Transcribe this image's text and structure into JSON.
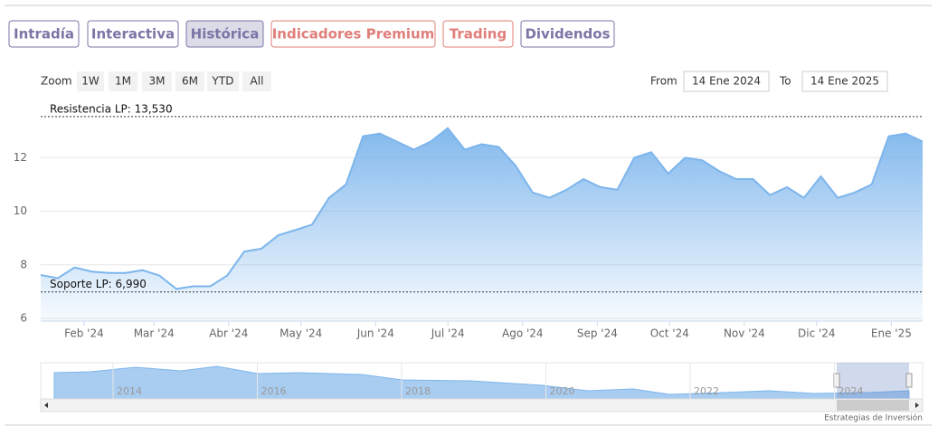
{
  "tabs": [
    "Intradía",
    "Interactiva",
    "Histórica",
    "Indicadores Premium",
    "Trading",
    "Dividendos"
  ],
  "zoom": {
    "label": "Zoom",
    "buttons": [
      "1W",
      "1M",
      "3M",
      "6M",
      "YTD",
      "All"
    ]
  },
  "range": {
    "from_label": "From",
    "from": "14 Ene 2024",
    "to_label": "To",
    "to": "14 Ene 2025"
  },
  "chart_data": {
    "type": "area",
    "color": "#7cb5ec",
    "values": [
      7.62,
      7.5,
      7.9,
      7.75,
      7.7,
      7.7,
      7.8,
      7.6,
      7.1,
      7.2,
      7.2,
      7.6,
      8.5,
      8.6,
      9.1,
      9.3,
      9.5,
      10.5,
      11.0,
      12.8,
      12.9,
      12.6,
      12.3,
      12.6,
      13.1,
      12.3,
      12.5,
      12.4,
      11.7,
      10.7,
      10.5,
      10.8,
      11.2,
      10.9,
      10.8,
      12.0,
      12.2,
      11.4,
      12.0,
      11.9,
      11.5,
      11.2,
      11.2,
      10.6,
      10.9,
      10.5,
      11.3,
      10.5,
      10.7,
      11.0,
      12.8,
      12.9,
      12.6
    ],
    "xlim": [
      "2024-01-14",
      "2025-01-14"
    ],
    "xticks": [
      {
        "value": "2024-02",
        "label": "Feb '24"
      },
      {
        "value": "2024-03",
        "label": "Mar '24"
      },
      {
        "value": "2024-04",
        "label": "Abr '24"
      },
      {
        "value": "2024-05",
        "label": "May '24"
      },
      {
        "value": "2024-06",
        "label": "Jun '24"
      },
      {
        "value": "2024-07",
        "label": "Jul '24"
      },
      {
        "value": "2024-08",
        "label": "Ago '24"
      },
      {
        "value": "2024-09",
        "label": "Sep '24"
      },
      {
        "value": "2024-10",
        "label": "Oct '24"
      },
      {
        "value": "2024-11",
        "label": "Nov '24"
      },
      {
        "value": "2024-12",
        "label": "Dic '24"
      },
      {
        "value": "2025-01",
        "label": "Ene '25"
      }
    ],
    "ylim": [
      5.9,
      14
    ],
    "yticks": [
      6,
      8,
      10,
      12
    ],
    "grid": true,
    "plot_lines": [
      {
        "label": "Resistencia LP: 13,530",
        "value": 13.53
      },
      {
        "label": "Soporte LP: 6,990",
        "value": 6.99
      }
    ]
  },
  "navigator": {
    "labels": [
      "2014",
      "2016",
      "2018",
      "2020",
      "2022",
      "2024"
    ]
  },
  "credit": "Estrategias de Inversión"
}
